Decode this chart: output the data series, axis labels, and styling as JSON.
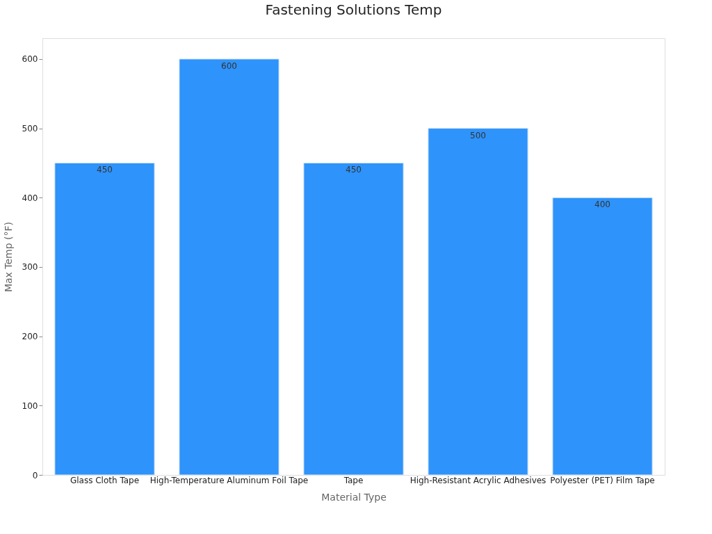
{
  "chart_data": {
    "type": "bar",
    "title": "Fastening Solutions Temp",
    "xlabel": "Material Type",
    "ylabel": "Max Temp (°F)",
    "categories": [
      "Glass Cloth Tape",
      "High-Temperature Aluminum Foil Tape",
      "Tape",
      "High-Resistant Acrylic Adhesives",
      "Polyester (PET) Film Tape"
    ],
    "values": [
      450,
      600,
      450,
      500,
      400
    ],
    "color": "#2e93fa",
    "ylim": [
      0,
      630
    ],
    "yticks": [
      0,
      100,
      200,
      300,
      400,
      500,
      600
    ],
    "grid": false,
    "data_labels": true
  }
}
